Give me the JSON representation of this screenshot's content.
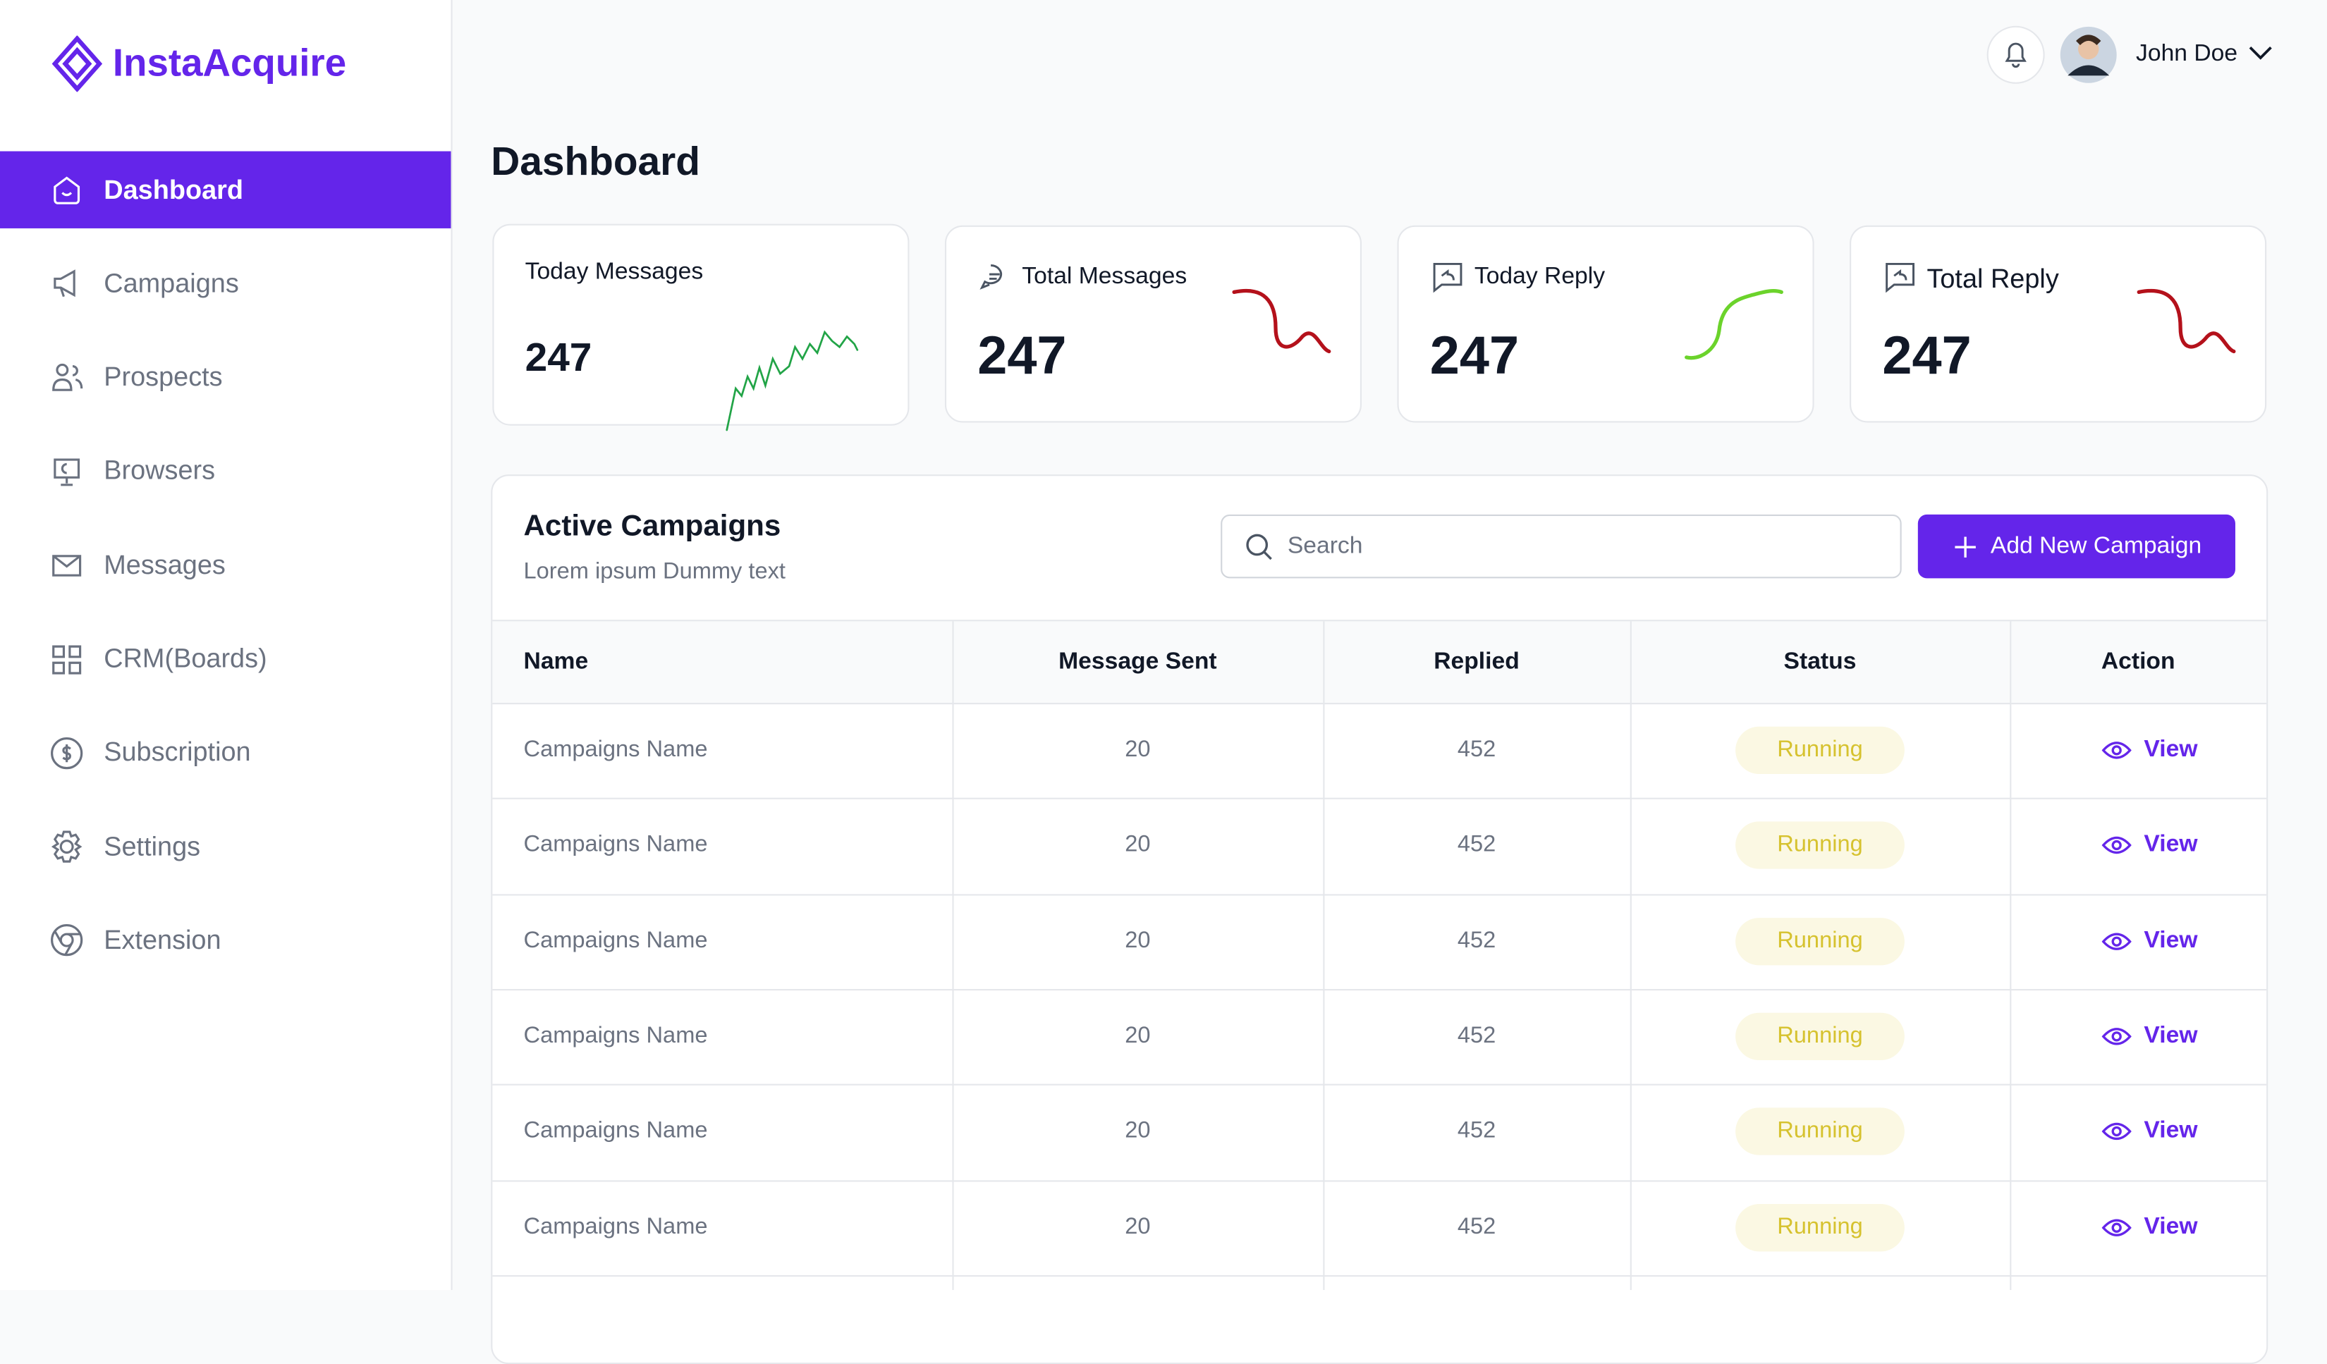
{
  "sidebar": {
    "brand": "InstaAcquire",
    "nav": [
      "Dashboard",
      "Campaigns",
      "Prospects",
      "Browsers",
      "Messages",
      "CRM(Boards)",
      "Subscription",
      "Settings",
      "Extension"
    ]
  },
  "header": {
    "user": "John Doe"
  },
  "page": {
    "title": "Dashboard"
  },
  "stats": [
    {
      "label": "Today Messages",
      "value": 247
    },
    {
      "label": "Total Messages",
      "value": 247
    },
    {
      "label": "Today Reply",
      "value": 247
    },
    {
      "label": "Total Reply",
      "value": 247
    }
  ],
  "campaigns": {
    "title": "Active Campaigns",
    "subtitle": "Lorem ipsum Dummy text",
    "search_placeholder": "Search",
    "button": "Add New Campaign",
    "columns": [
      "Name",
      "Message Sent",
      "Replied",
      "Status",
      "Action"
    ],
    "rows": [
      [
        "Campaigns Name",
        20,
        452,
        "Running",
        "View"
      ],
      [
        "Campaigns Name",
        20,
        452,
        "Running",
        "View"
      ],
      [
        "Campaigns Name",
        20,
        452,
        "Running",
        "View"
      ],
      [
        "Campaigns Name",
        20,
        452,
        "Running",
        "View"
      ],
      [
        "Campaigns Name",
        20,
        452,
        "Running",
        "View"
      ],
      [
        "Campaigns Name",
        20,
        452,
        "Running",
        "View"
      ]
    ]
  }
}
